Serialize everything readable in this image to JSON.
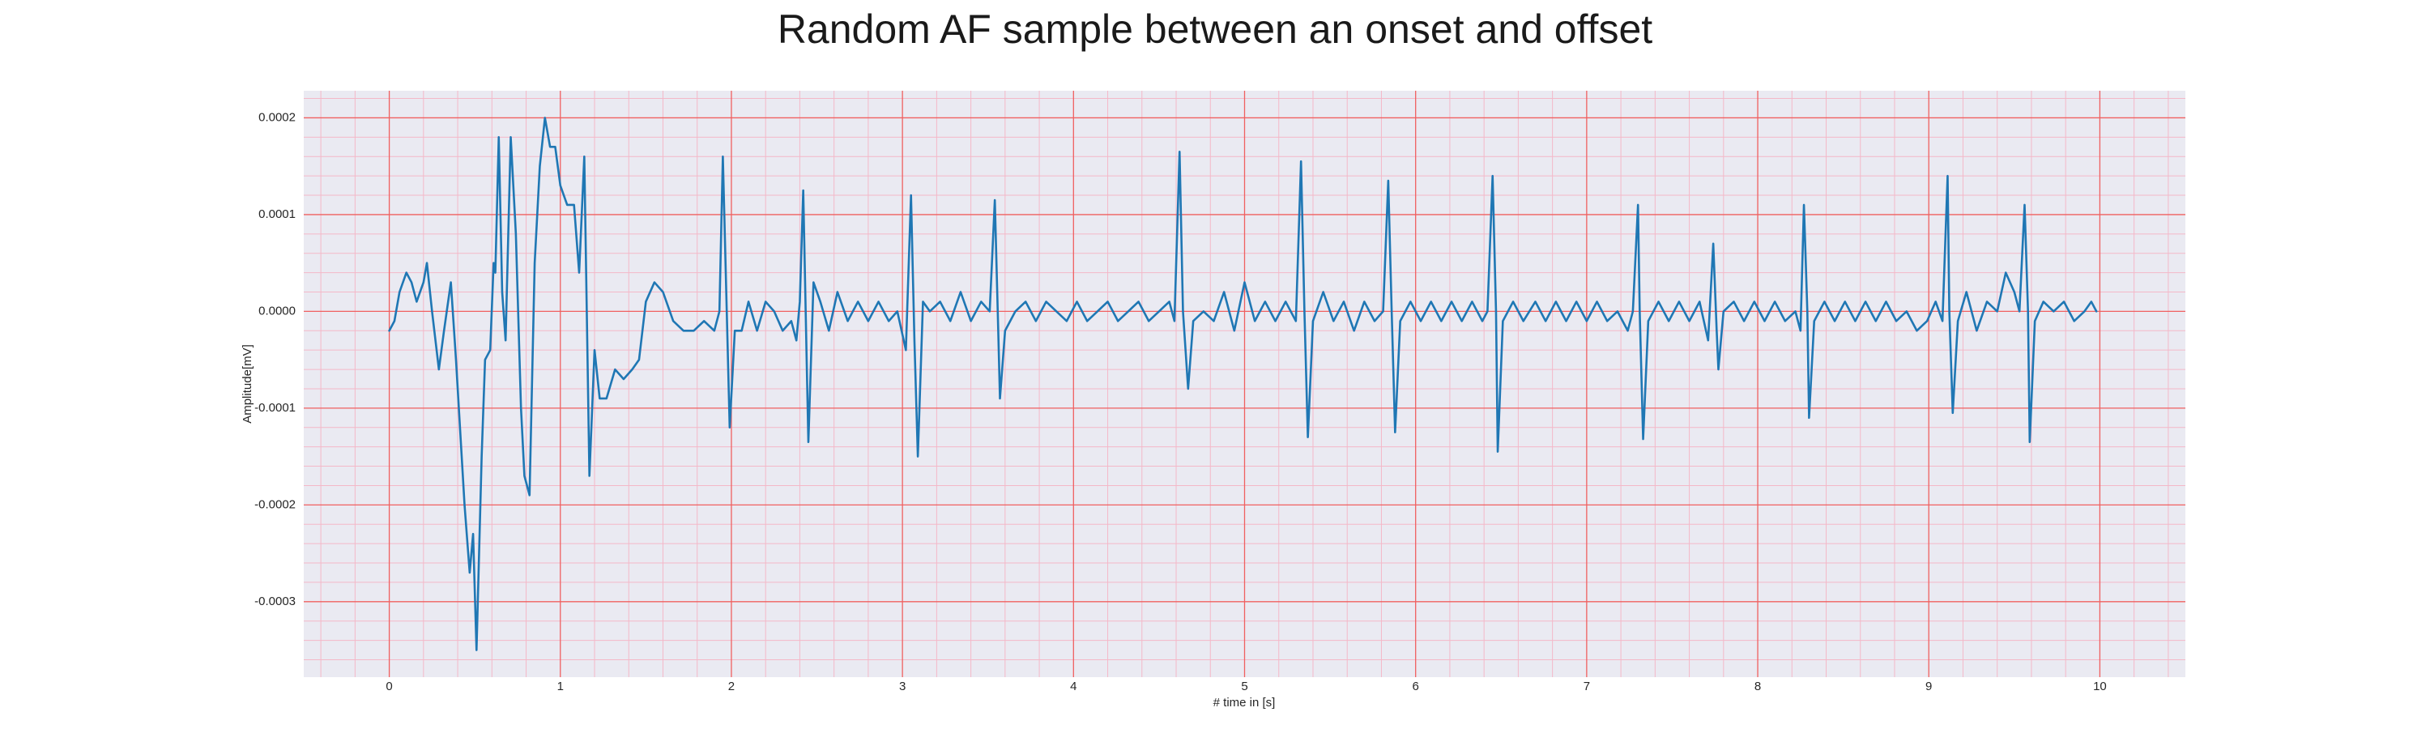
{
  "chart_data": {
    "type": "line",
    "title": "Random AF sample between an onset and offset",
    "x_label": "# time in [s]",
    "y_label": "Amplitude[mV]",
    "xlim": [
      -0.5,
      10.5
    ],
    "ylim": [
      -0.000378,
      0.000228
    ],
    "xticks": [
      0,
      1,
      2,
      3,
      4,
      5,
      6,
      7,
      8,
      9,
      10
    ],
    "yticks": [
      -0.0003,
      -0.0002,
      -0.0001,
      {
        "value": 0,
        "label": "0.0000"
      },
      0.0001,
      0.0002
    ],
    "grid": true,
    "grid_color": "#f06060",
    "minor_grid": true,
    "minor_grid_color": "#f4b8c8",
    "background": "#eaeaf2",
    "x": [
      0,
      0.03,
      0.06,
      0.1,
      0.13,
      0.16,
      0.2,
      0.22,
      0.25,
      0.29,
      0.32,
      0.36,
      0.39,
      0.44,
      0.47,
      0.49,
      0.51,
      0.54,
      0.56,
      0.59,
      0.61,
      0.62,
      0.64,
      0.66,
      0.68,
      0.71,
      0.74,
      0.77,
      0.79,
      0.82,
      0.85,
      0.88,
      0.91,
      0.94,
      0.97,
      1.0,
      1.04,
      1.08,
      1.11,
      1.14,
      1.17,
      1.2,
      1.23,
      1.27,
      1.32,
      1.37,
      1.42,
      1.46,
      1.5,
      1.55,
      1.6,
      1.66,
      1.72,
      1.78,
      1.84,
      1.9,
      1.93,
      1.95,
      1.97,
      1.99,
      2.02,
      2.06,
      2.1,
      2.15,
      2.2,
      2.25,
      2.3,
      2.35,
      2.38,
      2.4,
      2.42,
      2.44,
      2.45,
      2.48,
      2.52,
      2.57,
      2.62,
      2.68,
      2.74,
      2.8,
      2.86,
      2.92,
      2.97,
      3.02,
      3.05,
      3.07,
      3.09,
      3.12,
      3.16,
      3.22,
      3.28,
      3.34,
      3.4,
      3.46,
      3.51,
      3.54,
      3.56,
      3.57,
      3.6,
      3.66,
      3.72,
      3.78,
      3.84,
      3.9,
      3.96,
      4.02,
      4.08,
      4.14,
      4.2,
      4.26,
      4.32,
      4.38,
      4.44,
      4.5,
      4.56,
      4.59,
      4.62,
      4.64,
      4.67,
      4.7,
      4.76,
      4.82,
      4.88,
      4.94,
      5.0,
      5.06,
      5.12,
      5.18,
      5.24,
      5.3,
      5.33,
      5.35,
      5.37,
      5.4,
      5.46,
      5.52,
      5.58,
      5.64,
      5.7,
      5.76,
      5.81,
      5.84,
      5.86,
      5.88,
      5.91,
      5.97,
      6.03,
      6.09,
      6.15,
      6.21,
      6.27,
      6.33,
      6.39,
      6.42,
      6.45,
      6.47,
      6.48,
      6.51,
      6.57,
      6.63,
      6.7,
      6.76,
      6.82,
      6.88,
      6.94,
      7.0,
      7.06,
      7.12,
      7.18,
      7.24,
      7.27,
      7.3,
      7.31,
      7.33,
      7.36,
      7.42,
      7.48,
      7.54,
      7.6,
      7.66,
      7.71,
      7.74,
      7.76,
      7.77,
      7.8,
      7.86,
      7.92,
      7.98,
      8.04,
      8.1,
      8.16,
      8.22,
      8.25,
      8.27,
      8.29,
      8.3,
      8.33,
      8.39,
      8.45,
      8.51,
      8.57,
      8.63,
      8.69,
      8.75,
      8.81,
      8.87,
      8.93,
      8.99,
      9.04,
      9.08,
      9.11,
      9.12,
      9.14,
      9.17,
      9.22,
      9.28,
      9.34,
      9.4,
      9.45,
      9.5,
      9.53,
      9.56,
      9.58,
      9.59,
      9.62,
      9.67,
      9.73,
      9.79,
      9.85,
      9.91,
      9.95,
      9.98
    ],
    "series": [
      {
        "color": "#1f77b4",
        "values": [
          -2e-05,
          -1e-05,
          2e-05,
          4e-05,
          3e-05,
          1e-05,
          3e-05,
          5e-05,
          0,
          -6e-05,
          -2e-05,
          3e-05,
          -5e-05,
          -0.0002,
          -0.00027,
          -0.00023,
          -0.00035,
          -0.00015,
          -5e-05,
          -4e-05,
          5e-05,
          4e-05,
          0.00018,
          2e-05,
          -3e-05,
          0.00018,
          8e-05,
          -0.0001,
          -0.00017,
          -0.00019,
          5e-05,
          0.00015,
          0.0002,
          0.00017,
          0.00017,
          0.00013,
          0.00011,
          0.00011,
          4e-05,
          0.00016,
          -0.00017,
          -4e-05,
          -9e-05,
          -9e-05,
          -6e-05,
          -7e-05,
          -6e-05,
          -5e-05,
          1e-05,
          3e-05,
          2e-05,
          -1e-05,
          -2e-05,
          -2e-05,
          -1e-05,
          -2e-05,
          0,
          0.00016,
          2e-05,
          -0.00012,
          -2e-05,
          -2e-05,
          1e-05,
          -2e-05,
          1e-05,
          0,
          -2e-05,
          -1e-05,
          -3e-05,
          1e-05,
          0.000125,
          -5e-05,
          -0.000135,
          3e-05,
          1e-05,
          -2e-05,
          2e-05,
          -1e-05,
          1e-05,
          -1e-05,
          1e-05,
          -1e-05,
          0,
          -4e-05,
          0.00012,
          -3e-05,
          -0.00015,
          1e-05,
          0,
          1e-05,
          -1e-05,
          2e-05,
          -1e-05,
          1e-05,
          0,
          0.000115,
          -2e-05,
          -9e-05,
          -2e-05,
          0,
          1e-05,
          -1e-05,
          1e-05,
          0,
          -1e-05,
          1e-05,
          -1e-05,
          0,
          1e-05,
          -1e-05,
          0,
          1e-05,
          -1e-05,
          0,
          1e-05,
          -1e-05,
          0.000165,
          0,
          -8e-05,
          -1e-05,
          0,
          -1e-05,
          2e-05,
          -2e-05,
          3e-05,
          -1e-05,
          1e-05,
          -1e-05,
          1e-05,
          -1e-05,
          0.000155,
          0,
          -0.00013,
          -1e-05,
          2e-05,
          -1e-05,
          1e-05,
          -2e-05,
          1e-05,
          -1e-05,
          0,
          0.000135,
          0,
          -0.000125,
          -1e-05,
          1e-05,
          -1e-05,
          1e-05,
          -1e-05,
          1e-05,
          -1e-05,
          1e-05,
          -1e-05,
          0,
          0.00014,
          0,
          -0.000145,
          -1e-05,
          1e-05,
          -1e-05,
          1e-05,
          -1e-05,
          1e-05,
          -1e-05,
          1e-05,
          -1e-05,
          1e-05,
          -1e-05,
          0,
          -2e-05,
          0,
          0.00011,
          0,
          -0.000132,
          -1e-05,
          1e-05,
          -1e-05,
          1e-05,
          -1e-05,
          1e-05,
          -3e-05,
          7e-05,
          -2e-05,
          -6e-05,
          0,
          1e-05,
          -1e-05,
          1e-05,
          -1e-05,
          1e-05,
          -1e-05,
          0,
          -2e-05,
          0.00011,
          0,
          -0.00011,
          -1e-05,
          1e-05,
          -1e-05,
          1e-05,
          -1e-05,
          1e-05,
          -1e-05,
          1e-05,
          -1e-05,
          0,
          -2e-05,
          -1e-05,
          1e-05,
          -1e-05,
          0.00014,
          0,
          -0.000105,
          -1e-05,
          2e-05,
          -2e-05,
          1e-05,
          0,
          4e-05,
          2e-05,
          0,
          0.00011,
          0,
          -0.000135,
          -1e-05,
          1e-05,
          0,
          1e-05,
          -1e-05,
          0,
          1e-05,
          0
        ]
      }
    ]
  }
}
